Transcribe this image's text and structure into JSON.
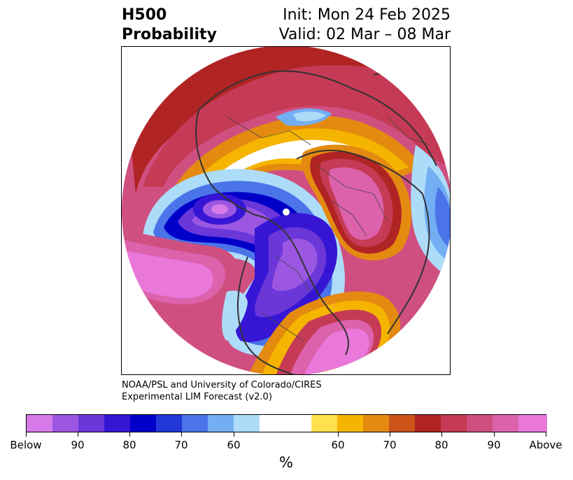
{
  "header": {
    "variable": "H500",
    "product": "Probability",
    "init": "Init: Mon 24 Feb 2025",
    "valid": "Valid: 02 Mar – 08 Mar"
  },
  "credit": {
    "line1": "NOAA/PSL and University of Colorado/CIRES",
    "line2": "Experimental LIM Forecast (v2.0)"
  },
  "colorbar": {
    "colors": [
      "#d57ae8",
      "#9b57e2",
      "#6b37d9",
      "#3616d4",
      "#0000c9",
      "#2238d6",
      "#4a74e8",
      "#73aef3",
      "#addcf9",
      "#ffffff",
      "#ffffff",
      "#ffe14e",
      "#f5b400",
      "#e48a10",
      "#cc5418",
      "#b02424",
      "#c53a55",
      "#cf5080",
      "#dd62ac",
      "#e978da"
    ],
    "tick_labels": [
      "Below",
      "90",
      "80",
      "70",
      "60",
      "60",
      "70",
      "80",
      "90",
      "Above"
    ],
    "unit": "%"
  },
  "legend_colors": {
    "below": "#e070dc",
    "strong_below": "#0000c9",
    "above": "#cf5080",
    "strong_above": "#b02424",
    "neutral": "#ffffff",
    "land_outline": "#333333"
  }
}
